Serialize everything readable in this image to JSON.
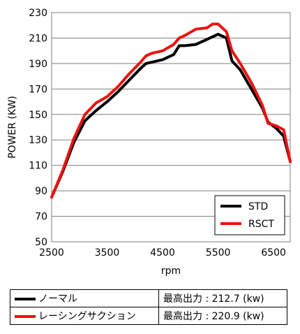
{
  "chart_data": {
    "type": "line",
    "title": "",
    "xlabel": "rpm",
    "ylabel": "POWER (KW)",
    "xlim": [
      2500,
      6800
    ],
    "ylim": [
      50,
      230
    ],
    "x_ticks": [
      "2500",
      "3500",
      "4500",
      "5500",
      "6500"
    ],
    "y_ticks": [
      "50",
      "70",
      "90",
      "110",
      "130",
      "150",
      "170",
      "190",
      "210",
      "230"
    ],
    "grid": "horizontal",
    "legend_position": "bottom-right",
    "series": [
      {
        "name": "STD",
        "color": "#000000",
        "x": [
          2500,
          2700,
          2900,
          3100,
          3300,
          3500,
          3700,
          3900,
          4100,
          4200,
          4300,
          4500,
          4700,
          4800,
          4900,
          5100,
          5300,
          5500,
          5650,
          5750,
          5900,
          6100,
          6300,
          6400,
          6550,
          6680,
          6800
        ],
        "y": [
          85,
          105,
          128,
          145,
          153,
          160,
          168,
          177,
          186,
          190,
          191,
          193,
          197,
          204,
          204,
          205,
          209,
          213,
          210,
          192,
          185,
          170,
          155,
          144,
          139,
          133,
          113
        ]
      },
      {
        "name": "RSCT",
        "color": "#ee1111",
        "x": [
          2500,
          2700,
          2900,
          3100,
          3300,
          3500,
          3700,
          3900,
          4100,
          4200,
          4300,
          4500,
          4700,
          4800,
          4900,
          5100,
          5300,
          5400,
          5500,
          5650,
          5750,
          5900,
          6100,
          6300,
          6400,
          6550,
          6680,
          6800
        ],
        "y": [
          85,
          106,
          131,
          150,
          159,
          164,
          172,
          182,
          191,
          196,
          198,
          200,
          205,
          210,
          212,
          217,
          218,
          221,
          221,
          215,
          200,
          190,
          175,
          157,
          143,
          141,
          138,
          113
        ]
      }
    ]
  },
  "summary_table": [
    {
      "label": "ノーマル",
      "value": "最高出力 : 212.7 (kw)",
      "color": "#000000"
    },
    {
      "label": "レーシングサクション",
      "value": "最高出力 : 220.9 (kw)",
      "color": "#ee1111"
    }
  ]
}
